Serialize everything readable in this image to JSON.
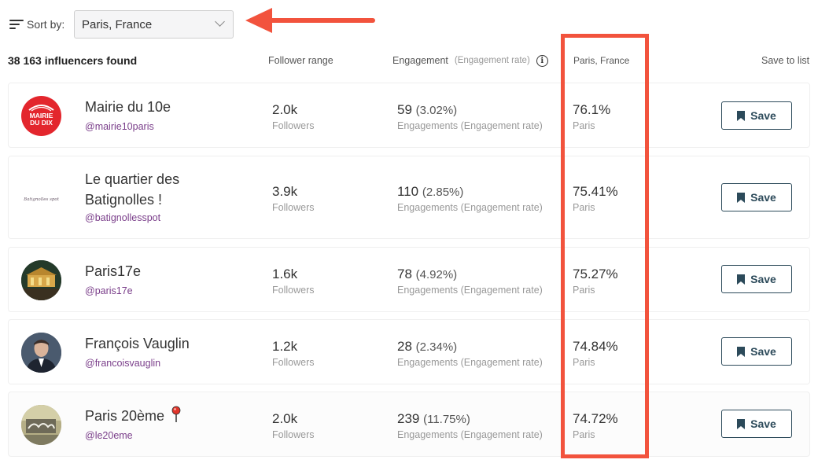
{
  "sort": {
    "label": "Sort by:",
    "value": "Paris, France"
  },
  "colors": {
    "accent": "#f2533d",
    "button": "#2c4a5a",
    "handle": "#7a3e8a"
  },
  "header": {
    "count": "38 163 influencers found",
    "follower_range": "Follower range",
    "engagement": "Engagement",
    "engagement_rate": "(Engagement rate)",
    "location": "Paris, France",
    "save_to_list": "Save to list"
  },
  "rows": [
    {
      "name": "Mairie du 10e",
      "name_line2": "",
      "handle": "@mairie10paris",
      "followers": "2.0k",
      "followers_label": "Followers",
      "eng": "59",
      "rate": "(3.02%)",
      "eng_label": "Engagements (Engagement rate)",
      "loc_pct": "76.1%",
      "loc_label": "Paris",
      "save": "Save",
      "avatar_icon": "mairie-du-dix-logo",
      "avatar_text_1": "MAIRIE",
      "avatar_text_2": "DU DIX"
    },
    {
      "name": "Le quartier des",
      "name_line2": "Batignolles !",
      "handle": "@batignollesspot",
      "followers": "3.9k",
      "followers_label": "Followers",
      "eng": "110",
      "rate": "(2.85%)",
      "eng_label": "Engagements (Engagement rate)",
      "loc_pct": "75.41%",
      "loc_label": "Paris",
      "save": "Save",
      "avatar_icon": "batignolles-spot-logo",
      "avatar_text_1": "Batignolles spot"
    },
    {
      "name": "Paris17e",
      "name_line2": "",
      "handle": "@paris17e",
      "followers": "1.6k",
      "followers_label": "Followers",
      "eng": "78",
      "rate": "(4.92%)",
      "eng_label": "Engagements (Engagement rate)",
      "loc_pct": "75.27%",
      "loc_label": "Paris",
      "save": "Save",
      "avatar_icon": "carousel-photo"
    },
    {
      "name": "François Vauglin",
      "name_line2": "",
      "handle": "@francoisvauglin",
      "followers": "1.2k",
      "followers_label": "Followers",
      "eng": "28",
      "rate": "(2.34%)",
      "eng_label": "Engagements (Engagement rate)",
      "loc_pct": "74.84%",
      "loc_label": "Paris",
      "save": "Save",
      "avatar_icon": "portrait-photo"
    },
    {
      "name": "Paris 20ème",
      "name_line2": "",
      "handle": "@le20eme",
      "followers": "2.0k",
      "followers_label": "Followers",
      "eng": "239",
      "rate": "(11.75%)",
      "eng_label": "Engagements (Engagement rate)",
      "loc_pct": "74.72%",
      "loc_label": "Paris",
      "save": "Save",
      "avatar_icon": "street-art-photo"
    }
  ]
}
